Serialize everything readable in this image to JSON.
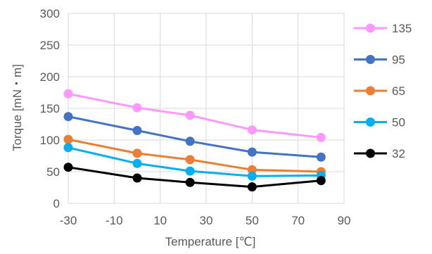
{
  "chart_data": {
    "type": "line",
    "title": "",
    "xlabel": "Temperature [℃]",
    "ylabel": "Torque [mN・m]",
    "xlim": [
      -30,
      90
    ],
    "ylim": [
      0,
      300
    ],
    "xticks": [
      -30,
      -10,
      10,
      30,
      50,
      70,
      90
    ],
    "yticks": [
      0,
      50,
      100,
      150,
      200,
      250,
      300
    ],
    "grid": true,
    "legend_position": "right",
    "x": [
      -30,
      0,
      23,
      50,
      80
    ],
    "series": [
      {
        "name": "135",
        "color": "#FF99FF",
        "values": [
          173,
          151,
          139,
          116,
          104
        ]
      },
      {
        "name": "95",
        "color": "#4472C4",
        "values": [
          137,
          115,
          98,
          81,
          73
        ]
      },
      {
        "name": "65",
        "color": "#ED7D31",
        "values": [
          101,
          79,
          69,
          53,
          50
        ]
      },
      {
        "name": "50",
        "color": "#00B0F0",
        "values": [
          88,
          63,
          51,
          43,
          44
        ]
      },
      {
        "name": "32",
        "color": "#000000",
        "values": [
          57,
          40,
          33,
          26,
          36
        ]
      }
    ]
  }
}
